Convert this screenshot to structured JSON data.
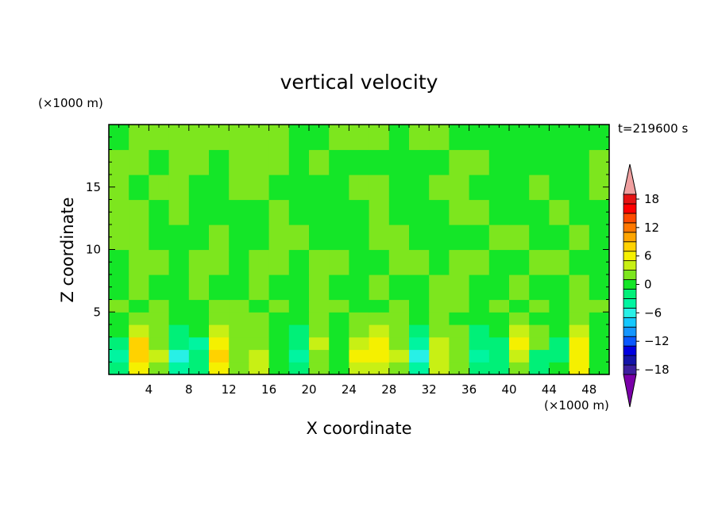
{
  "chart_data": {
    "type": "heatmap",
    "title": "vertical velocity",
    "xlabel": "X coordinate",
    "ylabel": "Z coordinate",
    "x_unit": "(×1000 m)",
    "y_unit": "(×1000 m)",
    "time_label": "t=219600 s",
    "xlim": [
      0,
      50
    ],
    "ylim": [
      0,
      20
    ],
    "x_ticks": [
      4,
      8,
      12,
      16,
      20,
      24,
      28,
      32,
      36,
      40,
      44,
      48
    ],
    "y_ticks": [
      5,
      10,
      15
    ],
    "colorbar": {
      "range": [
        -21,
        21
      ],
      "tick_values": [
        18,
        12,
        6,
        0,
        -6,
        -12,
        -18
      ],
      "tick_labels": [
        "18",
        "12",
        "6",
        "0",
        "−6",
        "−12",
        "−18"
      ],
      "colors": [
        "#7a00a8",
        "#3d1f9e",
        "#1414a8",
        "#0000e0",
        "#0a58ff",
        "#1496ff",
        "#14c8ff",
        "#28f0e6",
        "#00f5a0",
        "#00f078",
        "#14e628",
        "#7de61e",
        "#c8f014",
        "#f5f000",
        "#ffd200",
        "#ffa500",
        "#ff7800",
        "#ff4b00",
        "#ff0000",
        "#e61414",
        "#f0a0a0"
      ]
    },
    "cells": {
      "x_edges": [
        0,
        2,
        4,
        6,
        8,
        10,
        12,
        14,
        16,
        18,
        20,
        22,
        24,
        26,
        28,
        30,
        32,
        34,
        36,
        38,
        40,
        42,
        44,
        46,
        48,
        50
      ],
      "z_edges": [
        0,
        1,
        2,
        3,
        4,
        5,
        6,
        8,
        10,
        12,
        14,
        16,
        18,
        20
      ],
      "values": [
        [
          -3,
          5,
          2,
          -4,
          -3,
          6,
          1,
          4,
          0,
          -3,
          2,
          -1,
          3,
          4,
          1,
          -4,
          4,
          1,
          -3,
          -2,
          2,
          -2,
          -1,
          5,
          -1
        ],
        [
          -4,
          8,
          3,
          -6,
          -3,
          7,
          1,
          3,
          -1,
          -4,
          2,
          -1,
          5,
          6,
          3,
          -7,
          4,
          2,
          -4,
          -3,
          3,
          -3,
          -2,
          6,
          -1
        ],
        [
          -3,
          7,
          2,
          -3,
          -4,
          6,
          1,
          2,
          -1,
          -3,
          3,
          0,
          4,
          6,
          2,
          -4,
          3,
          2,
          -3,
          -2,
          5,
          1,
          -2,
          5,
          0
        ],
        [
          -1,
          3,
          1,
          -2,
          -1,
          4,
          1,
          2,
          0,
          -2,
          1,
          0,
          2,
          3,
          1,
          -2,
          1,
          1,
          -2,
          -1,
          3,
          1,
          -1,
          3,
          0
        ],
        [
          0,
          1,
          1,
          0,
          0,
          2,
          1,
          1,
          0,
          -1,
          1,
          0,
          1,
          1,
          1,
          -1,
          1,
          0,
          -1,
          0,
          1,
          0,
          0,
          1,
          0
        ],
        [
          1,
          0,
          1,
          0,
          0,
          1,
          1,
          0,
          1,
          0,
          1,
          1,
          0,
          0,
          1,
          0,
          1,
          1,
          0,
          1,
          0,
          1,
          0,
          1,
          1
        ],
        [
          0,
          1,
          0,
          0,
          1,
          0,
          0,
          1,
          0,
          0,
          1,
          0,
          0,
          1,
          0,
          0,
          1,
          1,
          0,
          0,
          1,
          0,
          0,
          1,
          0
        ],
        [
          0,
          1,
          1,
          0,
          1,
          1,
          0,
          1,
          1,
          0,
          1,
          1,
          0,
          0,
          1,
          1,
          0,
          1,
          1,
          0,
          0,
          1,
          1,
          0,
          0
        ],
        [
          1,
          1,
          0,
          0,
          0,
          1,
          0,
          0,
          1,
          1,
          0,
          0,
          0,
          1,
          1,
          0,
          0,
          0,
          0,
          1,
          1,
          0,
          0,
          1,
          0
        ],
        [
          1,
          1,
          0,
          1,
          0,
          0,
          0,
          0,
          1,
          0,
          0,
          0,
          0,
          1,
          0,
          0,
          0,
          1,
          1,
          0,
          0,
          0,
          1,
          0,
          0
        ],
        [
          1,
          0,
          1,
          1,
          0,
          0,
          1,
          1,
          0,
          0,
          0,
          0,
          1,
          1,
          0,
          0,
          1,
          1,
          0,
          0,
          0,
          1,
          0,
          0,
          1
        ],
        [
          1,
          1,
          0,
          1,
          1,
          0,
          1,
          1,
          1,
          0,
          1,
          0,
          0,
          0,
          0,
          0,
          0,
          1,
          1,
          0,
          0,
          0,
          0,
          0,
          1
        ],
        [
          0,
          1,
          1,
          1,
          1,
          1,
          1,
          1,
          1,
          0,
          0,
          1,
          1,
          1,
          0,
          1,
          1,
          0,
          0,
          0,
          0,
          0,
          0,
          0,
          0
        ]
      ]
    }
  }
}
